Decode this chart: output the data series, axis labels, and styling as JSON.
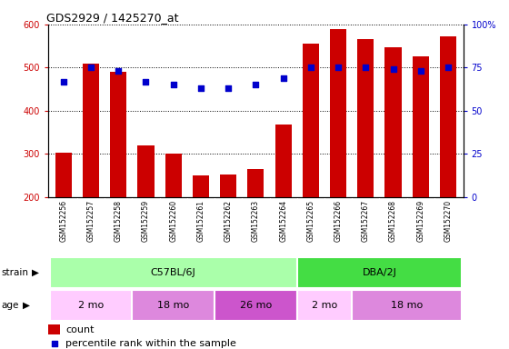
{
  "title": "GDS2929 / 1425270_at",
  "samples": [
    "GSM152256",
    "GSM152257",
    "GSM152258",
    "GSM152259",
    "GSM152260",
    "GSM152261",
    "GSM152262",
    "GSM152263",
    "GSM152264",
    "GSM152265",
    "GSM152266",
    "GSM152267",
    "GSM152268",
    "GSM152269",
    "GSM152270"
  ],
  "counts": [
    302,
    510,
    490,
    320,
    300,
    250,
    252,
    265,
    368,
    555,
    590,
    567,
    547,
    527,
    572
  ],
  "percentile_ranks": [
    67,
    75,
    73,
    67,
    65,
    63,
    63,
    65,
    69,
    75,
    75,
    75,
    74,
    73,
    75
  ],
  "ylim": [
    200,
    600
  ],
  "yticks": [
    200,
    300,
    400,
    500,
    600
  ],
  "y2lim": [
    0,
    100
  ],
  "y2ticks": [
    0,
    25,
    50,
    75,
    100
  ],
  "bar_color": "#cc0000",
  "dot_color": "#0000cc",
  "tick_label_area_color": "#cccccc",
  "strain_boundaries": [
    {
      "label": "C57BL/6J",
      "start": 0,
      "end": 8,
      "color": "#aaffaa"
    },
    {
      "label": "DBA/2J",
      "start": 9,
      "end": 14,
      "color": "#44dd44"
    }
  ],
  "age_boundaries": [
    {
      "label": "2 mo",
      "start": 0,
      "end": 2,
      "color": "#ffccff"
    },
    {
      "label": "18 mo",
      "start": 3,
      "end": 5,
      "color": "#dd88dd"
    },
    {
      "label": "26 mo",
      "start": 6,
      "end": 8,
      "color": "#cc55cc"
    },
    {
      "label": "2 mo",
      "start": 9,
      "end": 10,
      "color": "#ffccff"
    },
    {
      "label": "18 mo",
      "start": 11,
      "end": 14,
      "color": "#dd88dd"
    }
  ],
  "legend_count_label": "count",
  "legend_percentile_label": "percentile rank within the sample"
}
